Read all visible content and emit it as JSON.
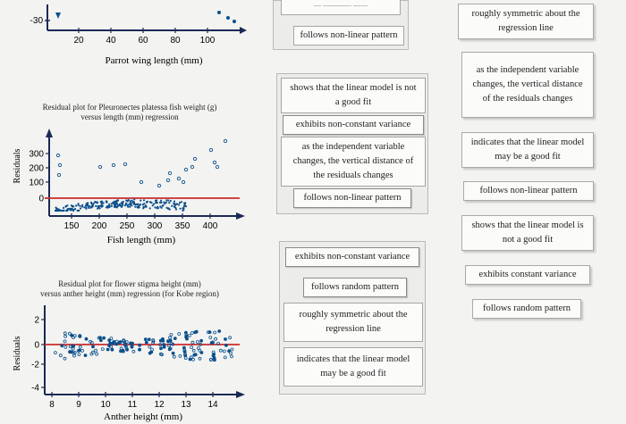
{
  "plots": {
    "parrot": {
      "ytick_top": "-30",
      "xticks": [
        "20",
        "40",
        "60",
        "80",
        "100"
      ],
      "xlabel": "Parrot wing length (mm)"
    },
    "fish": {
      "title_line1": "Residual plot for Pleuronectes platessa fish weight (g)",
      "title_line2": "versus length (mm) regression",
      "ylabel": "Residuals",
      "yticks": [
        "300",
        "200",
        "100",
        "0"
      ],
      "xticks": [
        "150",
        "200",
        "250",
        "300",
        "350",
        "400"
      ],
      "xlabel": "Fish length (mm)"
    },
    "flower": {
      "title_line1": "Residual plot for flower stigma height (mm)",
      "title_line2": "versus anther height (mm) regression (for Kobe region)",
      "ylabel": "Residuals",
      "yticks": [
        "2",
        "0",
        "-2",
        "-4"
      ],
      "xticks": [
        "8",
        "9",
        "10",
        "11",
        "12",
        "13",
        "14"
      ],
      "xlabel": "Anther height (mm)"
    }
  },
  "colors": {
    "points": "#0a4f8c",
    "zero_line": "#cc2b2b",
    "axis": "#1a2a55"
  },
  "group1": {
    "items": [
      "follows non-linear pattern"
    ]
  },
  "group2": {
    "items": [
      "shows that the linear model is not a good fit",
      "exhibits non-constant variance",
      "as the independent variable changes, the vertical distance of the residuals changes",
      "follows non-linear pattern"
    ]
  },
  "group3": {
    "items": [
      "exhibits non-constant variance",
      "follows random pattern",
      "roughly symmetric about the regression line",
      "indicates that the linear model may be a good fit"
    ]
  },
  "options": [
    "roughly symmetric about the regression line",
    "as the independent variable changes, the vertical distance of the residuals changes",
    "indicates that the linear model may be a good fit",
    "follows non-linear pattern",
    "shows that the linear model is not a good fit",
    "exhibits constant variance",
    "follows random pattern"
  ]
}
